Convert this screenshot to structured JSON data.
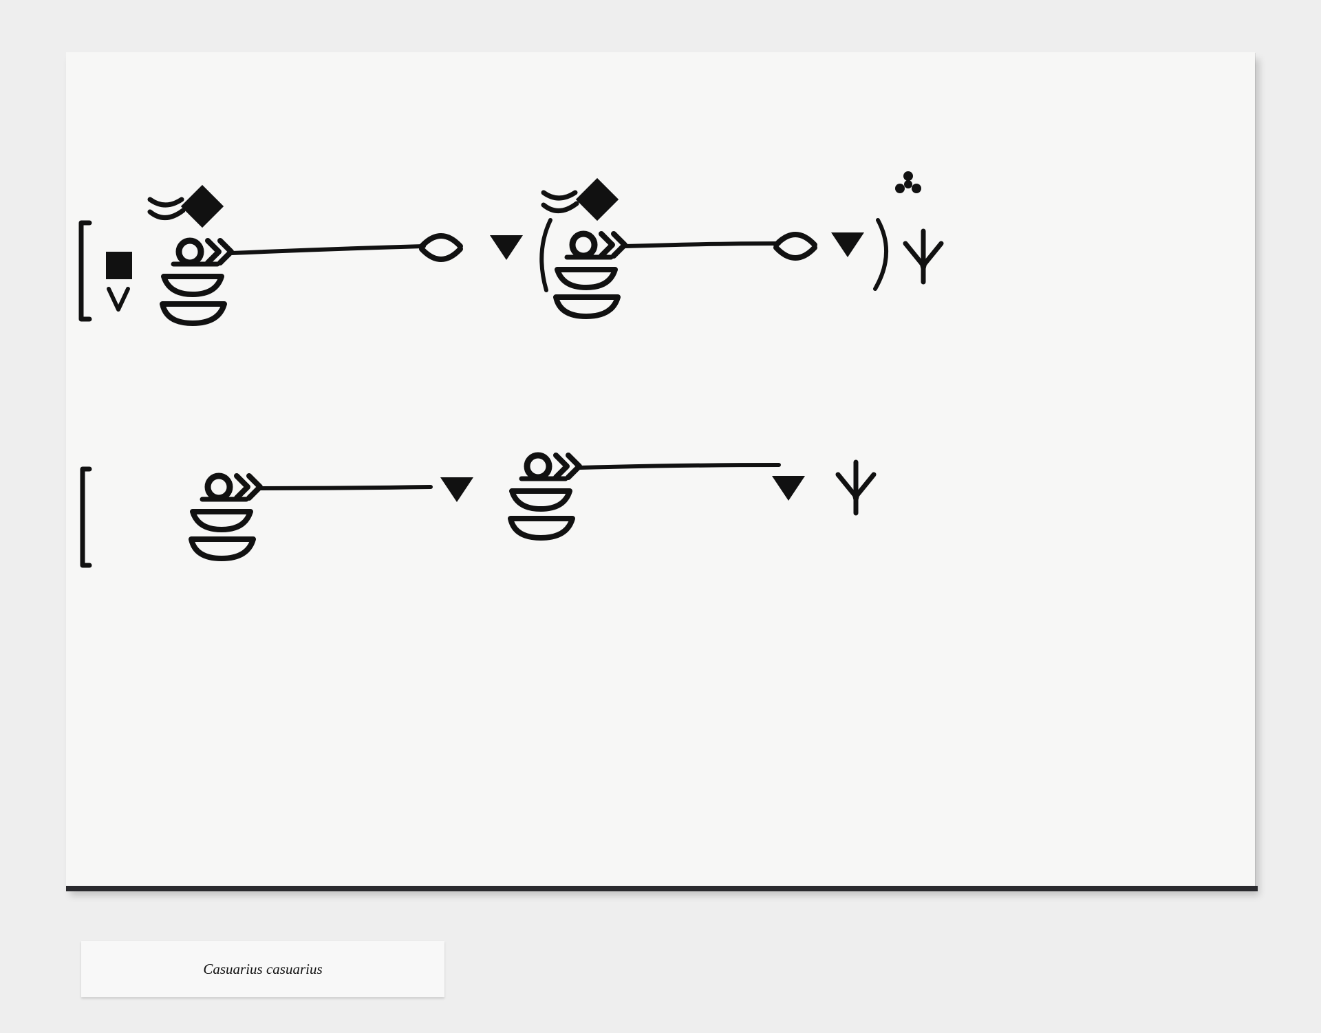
{
  "label": {
    "species_name": "Casuarius casuarius"
  },
  "ink_color": "#111111",
  "board_color": "#f7f7f6",
  "wall_color": "#eeeeee",
  "notation": {
    "rows": 2,
    "row1_symbols": [
      "bracket",
      "square",
      "v-mark",
      "ribbon-pair",
      "diamond",
      "circle",
      "chevrons",
      "stacked-bowls",
      "line",
      "lens",
      "triangle",
      "open-paren",
      "ribbon-pair",
      "diamond",
      "circle",
      "chevrons",
      "stacked-bowls",
      "line",
      "lens",
      "triangle",
      "close-paren",
      "trefoil",
      "bird-foot"
    ],
    "row2_symbols": [
      "bracket",
      "circle",
      "chevrons",
      "stacked-bowls",
      "line",
      "triangle",
      "circle",
      "chevrons",
      "stacked-bowls",
      "line",
      "triangle",
      "bird-foot"
    ]
  }
}
